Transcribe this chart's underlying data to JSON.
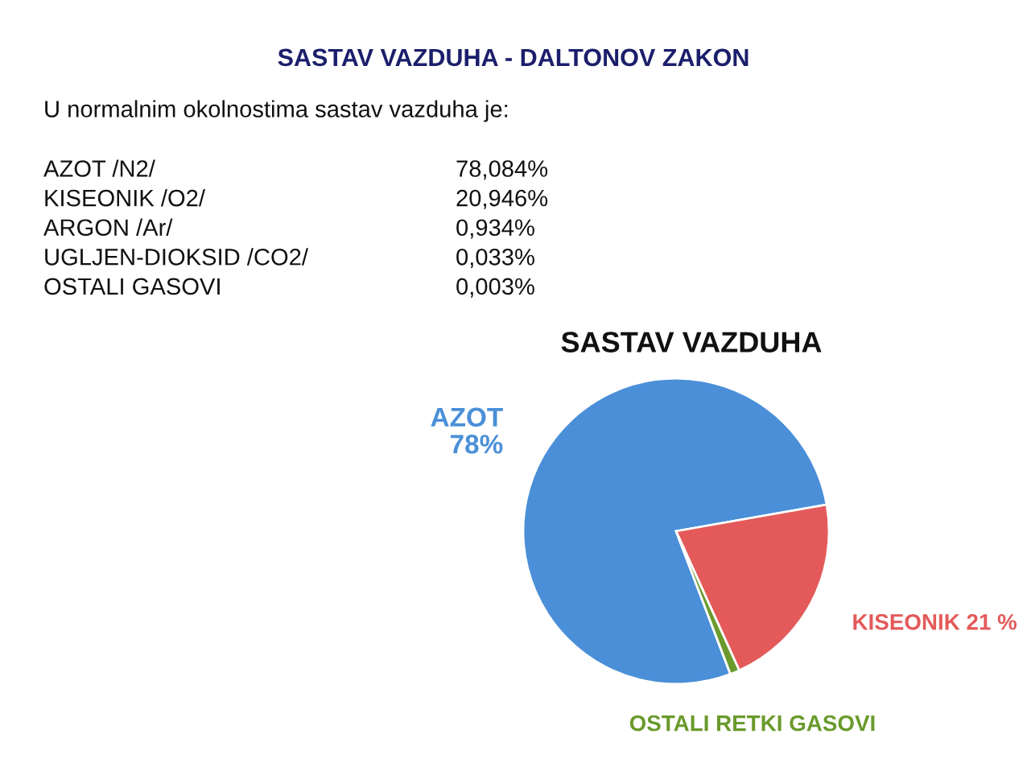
{
  "chart_data": [
    {
      "type": "other",
      "title": "SASTAV VAZDUHA - DALTONOV ZAKON",
      "subtitle": "U normalnim okolnostima sastav vazduha je:",
      "annotations": [
        "AZOT /N2/",
        "78,084%",
        "KISEONIK /O2/",
        "20,946%",
        "ARGON /Ar/",
        "0,934%",
        "UGLJEN-DIOKSID /CO2/",
        "0,033%",
        "OSTALI GASOVI",
        "0,003%"
      ]
    },
    {
      "type": "pie",
      "title": "SASTAV VAZDUHA",
      "categories": [
        "AZOT",
        "KISEONIK",
        "OSTALI RETKI GASOVI"
      ],
      "values": [
        78,
        21,
        1
      ],
      "colors": [
        "#4a8fd8",
        "#e45a5a",
        "#6a9a2c"
      ],
      "value_labels": [
        "78%",
        "21 %",
        null
      ]
    }
  ]
}
